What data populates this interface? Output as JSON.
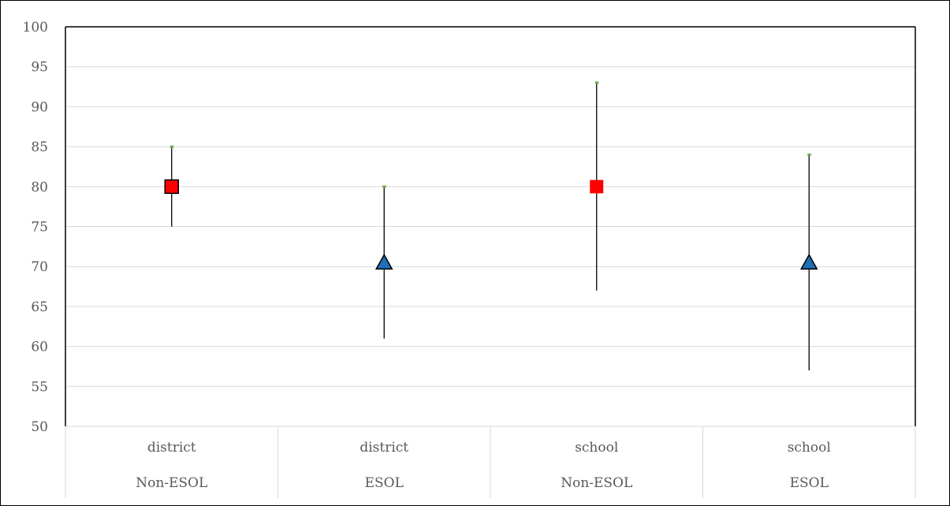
{
  "chart_data": {
    "type": "scatter",
    "title": "",
    "xlabel": "",
    "ylabel": "",
    "ylim": [
      50,
      100
    ],
    "ytick_step": 5,
    "grid": true,
    "legend": "none",
    "categories": [
      {
        "group": "district",
        "subgroup": "Non-ESOL"
      },
      {
        "group": "district",
        "subgroup": "ESOL"
      },
      {
        "group": "school",
        "subgroup": "Non-ESOL"
      },
      {
        "group": "school",
        "subgroup": "ESOL"
      }
    ],
    "points": [
      {
        "value": 80,
        "low": 75,
        "high": 85,
        "marker": "square",
        "color": "#ff0000",
        "outlined": true
      },
      {
        "value": 70.5,
        "low": 61,
        "high": 80,
        "marker": "triangle",
        "color": "#1f6fb5",
        "outlined": true
      },
      {
        "value": 80,
        "low": 67,
        "high": 93,
        "marker": "square",
        "color": "#ff0000",
        "outlined": false
      },
      {
        "value": 70.5,
        "low": 57,
        "high": 84,
        "marker": "triangle",
        "color": "#1f6fb5",
        "outlined": true
      }
    ],
    "colors": {
      "error_bar": "#000000",
      "high_cap": "#70ad47",
      "gridline": "#d9d9d9",
      "axis": "#000000",
      "tick_text": "#595959"
    }
  }
}
